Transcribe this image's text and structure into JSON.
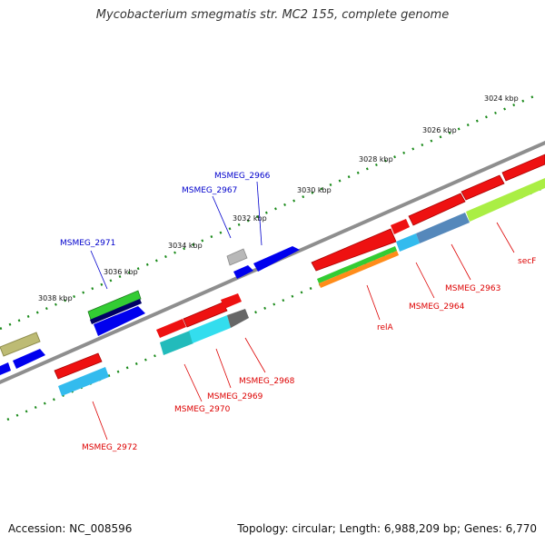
{
  "title": "Mycobacterium smegmatis str. MC2 155, complete genome",
  "footer": {
    "accession": "Accession: NC_008596",
    "stats": "Topology: circular; Length: 6,988,209 bp; Genes: 6,770"
  },
  "scale_labels": [
    "3024 kbp",
    "3026 kbp",
    "3028 kbp",
    "3030 kbp",
    "3032 kbp",
    "3034 kbp",
    "3036 kbp",
    "3038 kbp"
  ],
  "gene_labels_top": [
    "MSMEG_2966",
    "MSMEG_2967",
    "MSMEG_2971"
  ],
  "gene_labels_bottom": [
    "secF",
    "MSMEG_2963",
    "MSMEG_2964",
    "relA",
    "MSMEG_2968",
    "MSMEG_2969",
    "MSMEG_2970",
    "MSMEG_2972"
  ],
  "colors": {
    "forward_label": "#0000cc",
    "reverse_label": "#dd0000",
    "backbone": "#808080",
    "tick": "#007700"
  }
}
